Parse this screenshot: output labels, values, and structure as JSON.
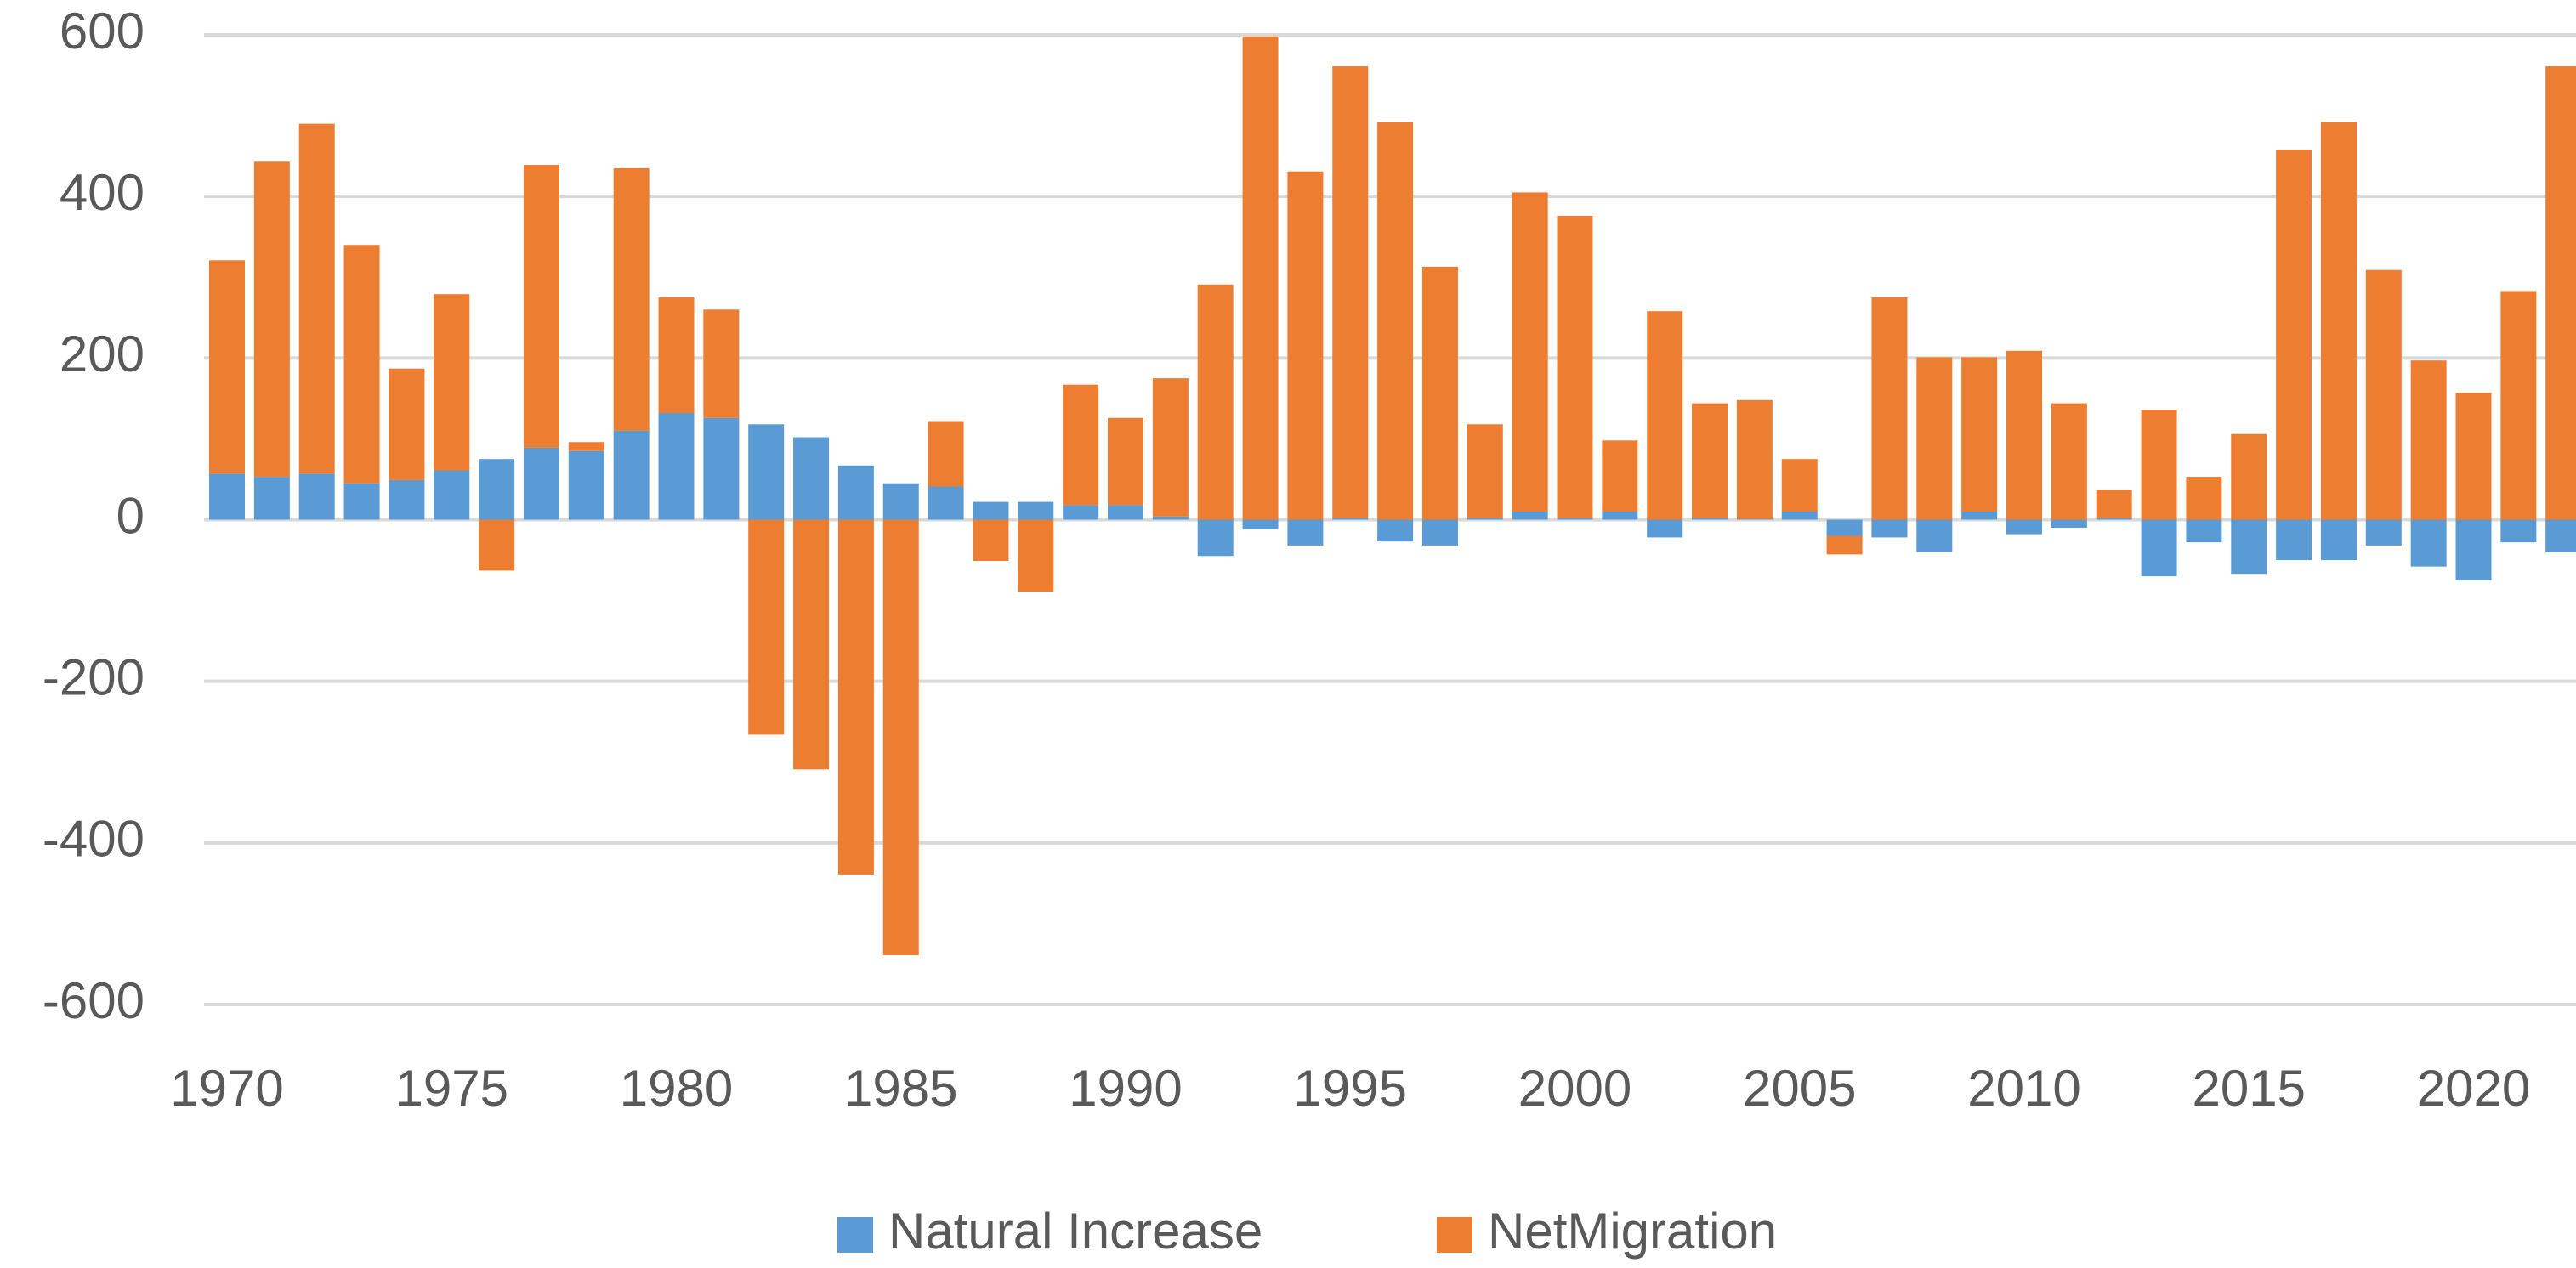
{
  "chart_data": {
    "type": "bar",
    "stacked": true,
    "categories": [
      1970,
      null,
      null,
      null,
      null,
      1975,
      null,
      null,
      null,
      null,
      1980,
      null,
      null,
      null,
      null,
      1985,
      null,
      null,
      null,
      null,
      1990,
      null,
      null,
      null,
      null,
      1995,
      null,
      null,
      null,
      null,
      2000,
      null,
      null,
      null,
      null,
      2005,
      null,
      null,
      null,
      null,
      2010,
      null,
      null,
      null,
      null,
      2015,
      null,
      null,
      null,
      null,
      2020,
      null,
      null
    ],
    "series": [
      {
        "name": "Natural Increase",
        "color": "#5b9bd5",
        "values": [
          57,
          53,
          57,
          45,
          49,
          61,
          75,
          89,
          85,
          110,
          132,
          126,
          118,
          102,
          67,
          45,
          41,
          22,
          22,
          18,
          18,
          4,
          -45,
          -12,
          -32,
          2,
          -27,
          -32,
          2,
          10,
          2,
          10,
          -22,
          2,
          1,
          10,
          -20,
          -22,
          -40,
          10,
          -18,
          -10,
          2,
          -70,
          -28,
          -67,
          -50,
          -50,
          -32,
          -58,
          -75,
          -28,
          -40
        ]
      },
      {
        "name": "NetMigration",
        "color": "#ed7d31",
        "values": [
          264,
          390,
          433,
          295,
          138,
          218,
          -63,
          350,
          11,
          325,
          143,
          134,
          -266,
          -309,
          -439,
          -539,
          81,
          -51,
          -89,
          149,
          108,
          171,
          291,
          598,
          431,
          559,
          492,
          313,
          116,
          395,
          374,
          88,
          258,
          142,
          147,
          65,
          -23,
          275,
          201,
          191,
          209,
          144,
          35,
          136,
          53,
          106,
          458,
          492,
          309,
          197,
          157,
          283,
          561
        ]
      }
    ],
    "ylim": [
      -600,
      600
    ],
    "yticks": [
      -600,
      -400,
      -200,
      0,
      200,
      400,
      600
    ],
    "grid": true,
    "legend": "bottom"
  }
}
